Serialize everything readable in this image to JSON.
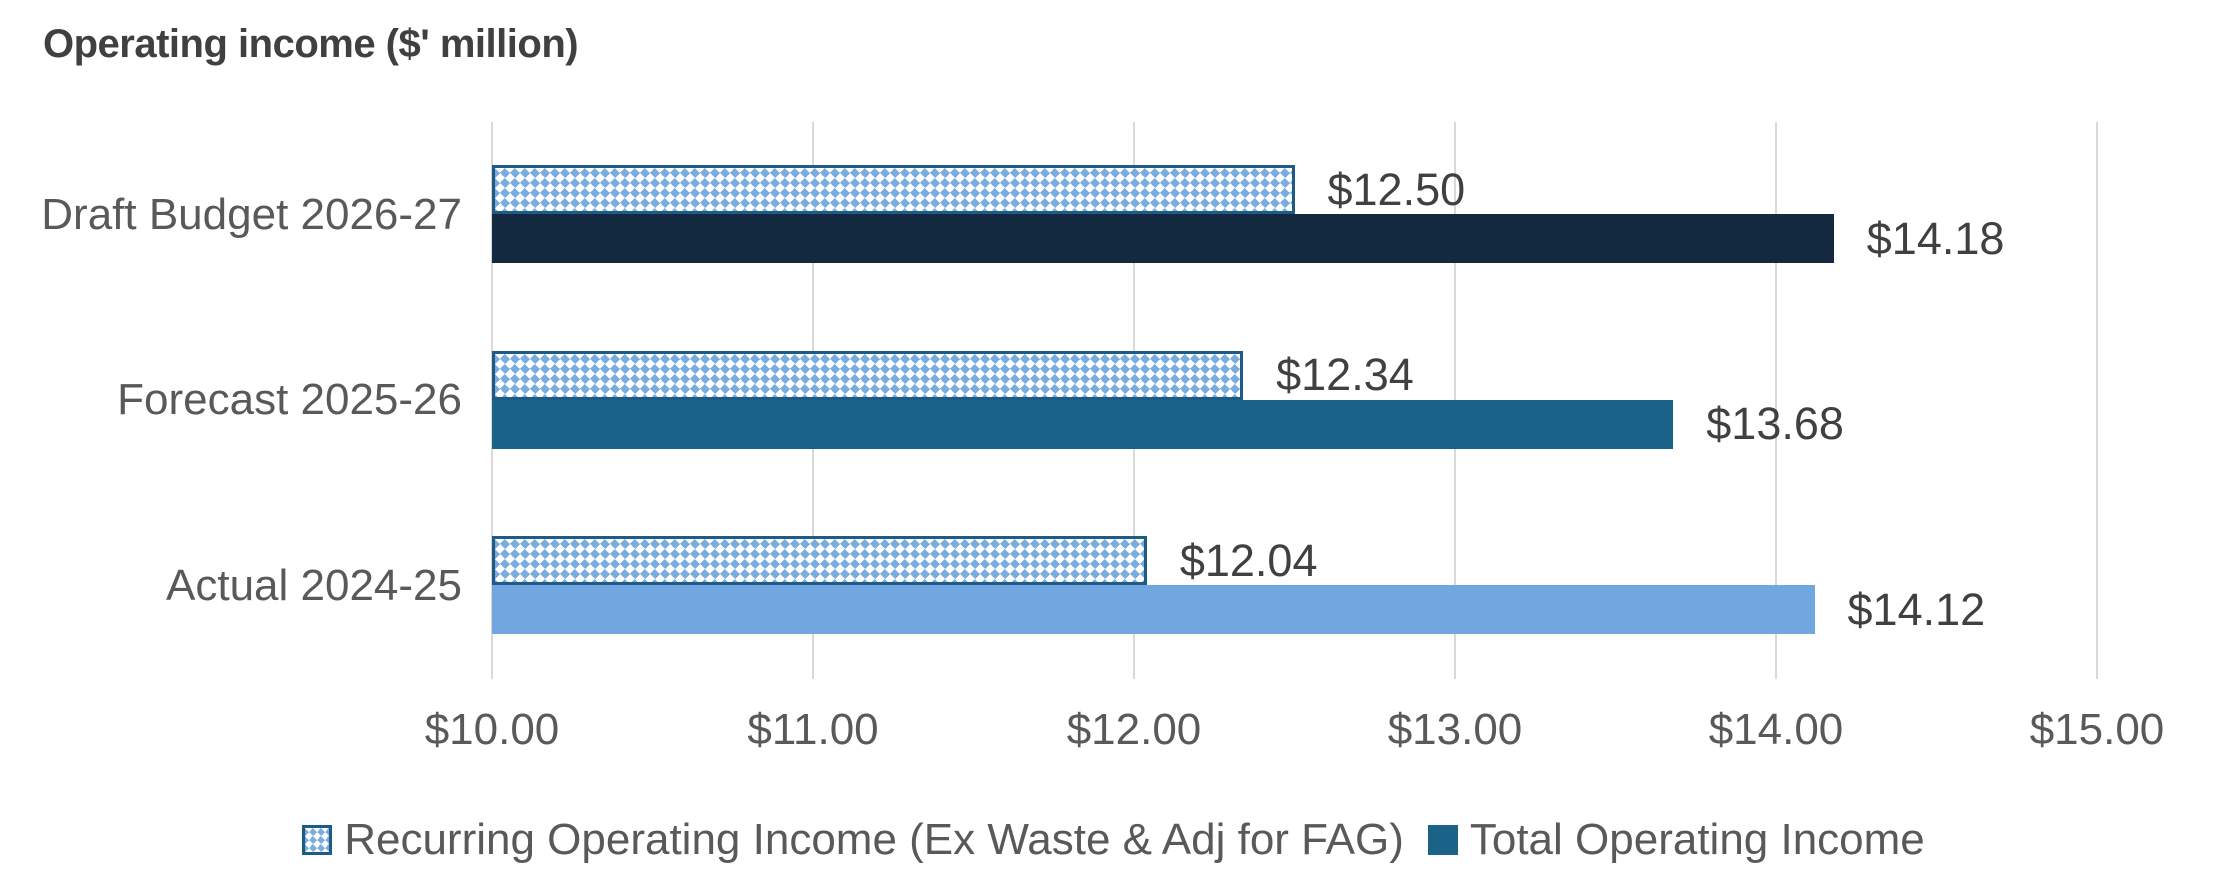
{
  "title": "Operating income ($' million)",
  "colors": {
    "title_text": "#404040",
    "axis_text": "#595959",
    "data_label_text": "#404040",
    "gridline": "#D9D9D9",
    "hatch_fill_blue": "#79ADDF",
    "hatch_border": "#1E5C85",
    "total_draft_budget": "#12293F",
    "total_forecast": "#1A6287",
    "total_actual": "#6FA7DE"
  },
  "chart_data": {
    "type": "bar",
    "orientation": "horizontal",
    "title": "Operating income ($' million)",
    "categories": [
      "Draft Budget 2026-27",
      "Forecast 2025-26",
      "Actual 2024-25"
    ],
    "series": [
      {
        "name": "Recurring Operating Income (Ex Waste & Adj for FAG)",
        "style": "pattern",
        "values": [
          12.5,
          12.34,
          12.04
        ],
        "labels": [
          "$12.50",
          "$12.34",
          "$12.04"
        ]
      },
      {
        "name": "Total Operating Income",
        "style": "solid",
        "values": [
          14.18,
          13.68,
          14.12
        ],
        "labels": [
          "$14.18",
          "$13.68",
          "$14.12"
        ],
        "point_colors": [
          "#12293F",
          "#1A6287",
          "#6FA7DE"
        ]
      }
    ],
    "xlim": [
      10,
      15
    ],
    "x_ticks": [
      "$10.00",
      "$11.00",
      "$12.00",
      "$13.00",
      "$14.00",
      "$15.00"
    ],
    "grid": true,
    "legend_position": "bottom"
  }
}
